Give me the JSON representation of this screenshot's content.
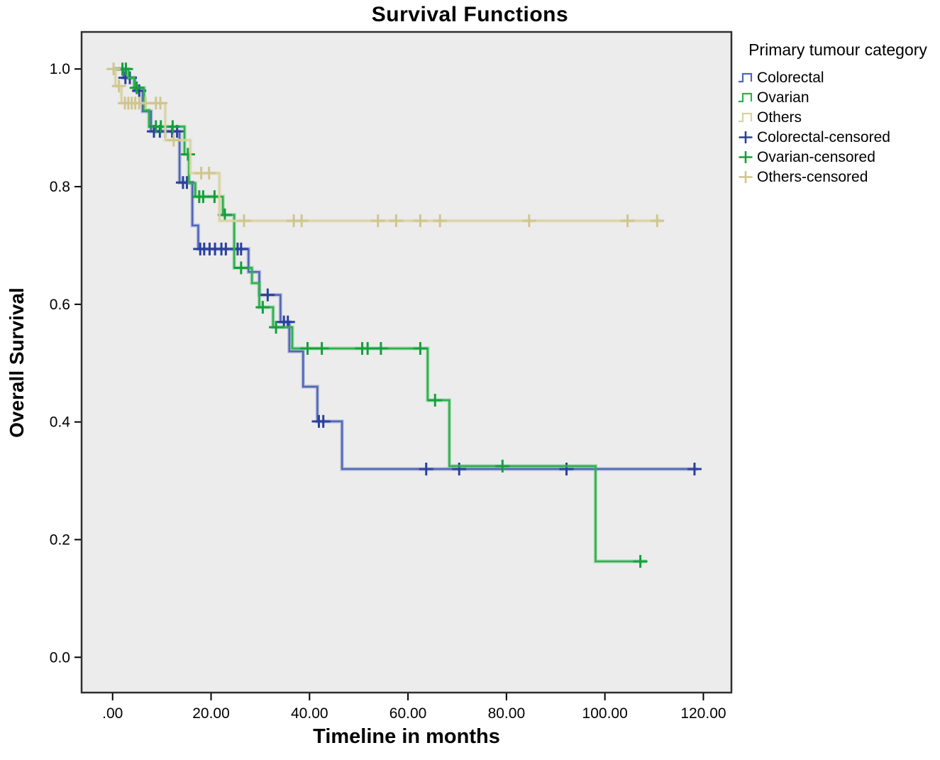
{
  "title": "Survival Functions",
  "axes": {
    "x": {
      "label": "Timeline in months",
      "tick_labels": [
        ".00",
        "20.00",
        "40.00",
        "60.00",
        "80.00",
        "100.00",
        "120.00"
      ],
      "tick_values": [
        0,
        20,
        40,
        60,
        80,
        100,
        120
      ]
    },
    "y": {
      "label": "Overall Survival",
      "tick_labels": [
        "0.0",
        "0.2",
        "0.4",
        "0.6",
        "0.8",
        "1.0"
      ],
      "tick_values": [
        0,
        0.2,
        0.4,
        0.6,
        0.8,
        1.0
      ]
    }
  },
  "legend": {
    "title": "Primary tumour category",
    "entries": [
      {
        "label": "Colorectal",
        "glyph": "step-line-icon",
        "color": "#5166b6"
      },
      {
        "label": "Ovarian",
        "glyph": "step-line-icon",
        "color": "#2cb14b"
      },
      {
        "label": "Others",
        "glyph": "step-line-icon",
        "color": "#d9d2a2"
      },
      {
        "label": "Colorectal-censored",
        "glyph": "plus-icon",
        "color": "#2b3f9d"
      },
      {
        "label": "Ovarian-censored",
        "glyph": "plus-icon",
        "color": "#13a03a"
      },
      {
        "label": "Others-censored",
        "glyph": "plus-icon",
        "color": "#cfc68e"
      }
    ]
  },
  "colors": {
    "plot_background": "#ececec",
    "frame": "#2f2f2f",
    "colorectal": "#5166b6",
    "colorectal_censor": "#2b3f9d",
    "ovarian": "#2cb14b",
    "ovarian_censor": "#13a03a",
    "others": "#d9d2a2",
    "others_censor": "#cfc68e"
  },
  "chart_data": {
    "type": "line",
    "subtype": "kaplan-meier-step",
    "title": "Survival Functions",
    "xlabel": "Timeline in months",
    "ylabel": "Overall Survival",
    "xlim": [
      -6.3,
      125.7
    ],
    "ylim": [
      -0.06,
      1.063
    ],
    "grid": false,
    "legend_position": "right",
    "series": [
      {
        "name": "Colorectal",
        "color": "#5166b6",
        "censor_color": "#2b3f9d",
        "start": [
          0,
          1.0
        ],
        "end_time": 118.8,
        "drops": [
          [
            2.2,
            0.985
          ],
          [
            4.5,
            0.963
          ],
          [
            6.1,
            0.928
          ],
          [
            7.8,
            0.894
          ],
          [
            13.6,
            0.807
          ],
          [
            16.2,
            0.734
          ],
          [
            17.4,
            0.694
          ],
          [
            27.6,
            0.655
          ],
          [
            29.8,
            0.616
          ],
          [
            34.1,
            0.57
          ],
          [
            35.9,
            0.52
          ],
          [
            38.7,
            0.46
          ],
          [
            41.6,
            0.401
          ],
          [
            46.6,
            0.32
          ]
        ],
        "censored": [
          [
            2.6,
            0.985
          ],
          [
            3.5,
            0.985
          ],
          [
            5.4,
            0.963
          ],
          [
            8.4,
            0.894
          ],
          [
            9.6,
            0.894
          ],
          [
            10.7,
            0.894
          ],
          [
            12.1,
            0.894
          ],
          [
            13.1,
            0.894
          ],
          [
            14.3,
            0.807
          ],
          [
            15.1,
            0.807
          ],
          [
            17.8,
            0.694
          ],
          [
            18.6,
            0.694
          ],
          [
            19.7,
            0.694
          ],
          [
            20.8,
            0.694
          ],
          [
            22.1,
            0.694
          ],
          [
            23.0,
            0.694
          ],
          [
            25.4,
            0.694
          ],
          [
            26.1,
            0.694
          ],
          [
            31.5,
            0.616
          ],
          [
            34.8,
            0.57
          ],
          [
            35.6,
            0.57
          ],
          [
            41.9,
            0.401
          ],
          [
            42.8,
            0.401
          ],
          [
            63.7,
            0.32
          ],
          [
            70.4,
            0.32
          ],
          [
            92.2,
            0.32
          ],
          [
            118.2,
            0.32
          ]
        ]
      },
      {
        "name": "Ovarian",
        "color": "#2cb14b",
        "censor_color": "#13a03a",
        "start": [
          0,
          1.0
        ],
        "end_time": 108.5,
        "drops": [
          [
            3.2,
            0.985
          ],
          [
            4.4,
            0.968
          ],
          [
            6.4,
            0.93
          ],
          [
            7.4,
            0.902
          ],
          [
            14.6,
            0.855
          ],
          [
            15.5,
            0.806
          ],
          [
            16.8,
            0.783
          ],
          [
            22.4,
            0.752
          ],
          [
            24.7,
            0.662
          ],
          [
            28.3,
            0.636
          ],
          [
            29.8,
            0.595
          ],
          [
            32.6,
            0.561
          ],
          [
            36.5,
            0.525
          ],
          [
            64.0,
            0.437
          ],
          [
            68.4,
            0.325
          ],
          [
            98.1,
            0.163
          ]
        ],
        "censored": [
          [
            2.0,
            1.0
          ],
          [
            2.7,
            1.0
          ],
          [
            4.9,
            0.968
          ],
          [
            8.8,
            0.902
          ],
          [
            9.8,
            0.902
          ],
          [
            12.2,
            0.902
          ],
          [
            15.3,
            0.855
          ],
          [
            17.6,
            0.783
          ],
          [
            18.4,
            0.783
          ],
          [
            20.7,
            0.783
          ],
          [
            22.8,
            0.752
          ],
          [
            26.1,
            0.662
          ],
          [
            30.5,
            0.595
          ],
          [
            33.2,
            0.561
          ],
          [
            39.6,
            0.525
          ],
          [
            42.5,
            0.525
          ],
          [
            50.7,
            0.525
          ],
          [
            51.8,
            0.525
          ],
          [
            54.5,
            0.525
          ],
          [
            62.5,
            0.525
          ],
          [
            65.5,
            0.437
          ],
          [
            79.2,
            0.325
          ],
          [
            107.2,
            0.163
          ]
        ]
      },
      {
        "name": "Others",
        "color": "#d9d2a2",
        "censor_color": "#cfc68e",
        "start": [
          0,
          1.0
        ],
        "end_time": 111.7,
        "drops": [
          [
            0.6,
            0.971
          ],
          [
            1.8,
            0.942
          ],
          [
            10.7,
            0.879
          ],
          [
            15.8,
            0.823
          ],
          [
            21.7,
            0.742
          ]
        ],
        "censored": [
          [
            0.2,
            1.0
          ],
          [
            1.3,
            0.971
          ],
          [
            2.5,
            0.942
          ],
          [
            3.2,
            0.942
          ],
          [
            3.9,
            0.942
          ],
          [
            4.6,
            0.942
          ],
          [
            5.4,
            0.942
          ],
          [
            6.7,
            0.942
          ],
          [
            8.8,
            0.942
          ],
          [
            9.7,
            0.942
          ],
          [
            12.4,
            0.879
          ],
          [
            18.0,
            0.823
          ],
          [
            19.6,
            0.823
          ],
          [
            26.7,
            0.742
          ],
          [
            36.8,
            0.742
          ],
          [
            38.4,
            0.742
          ],
          [
            53.9,
            0.742
          ],
          [
            57.6,
            0.742
          ],
          [
            62.5,
            0.742
          ],
          [
            66.5,
            0.742
          ],
          [
            84.6,
            0.742
          ],
          [
            104.6,
            0.742
          ],
          [
            110.6,
            0.742
          ]
        ]
      }
    ]
  }
}
